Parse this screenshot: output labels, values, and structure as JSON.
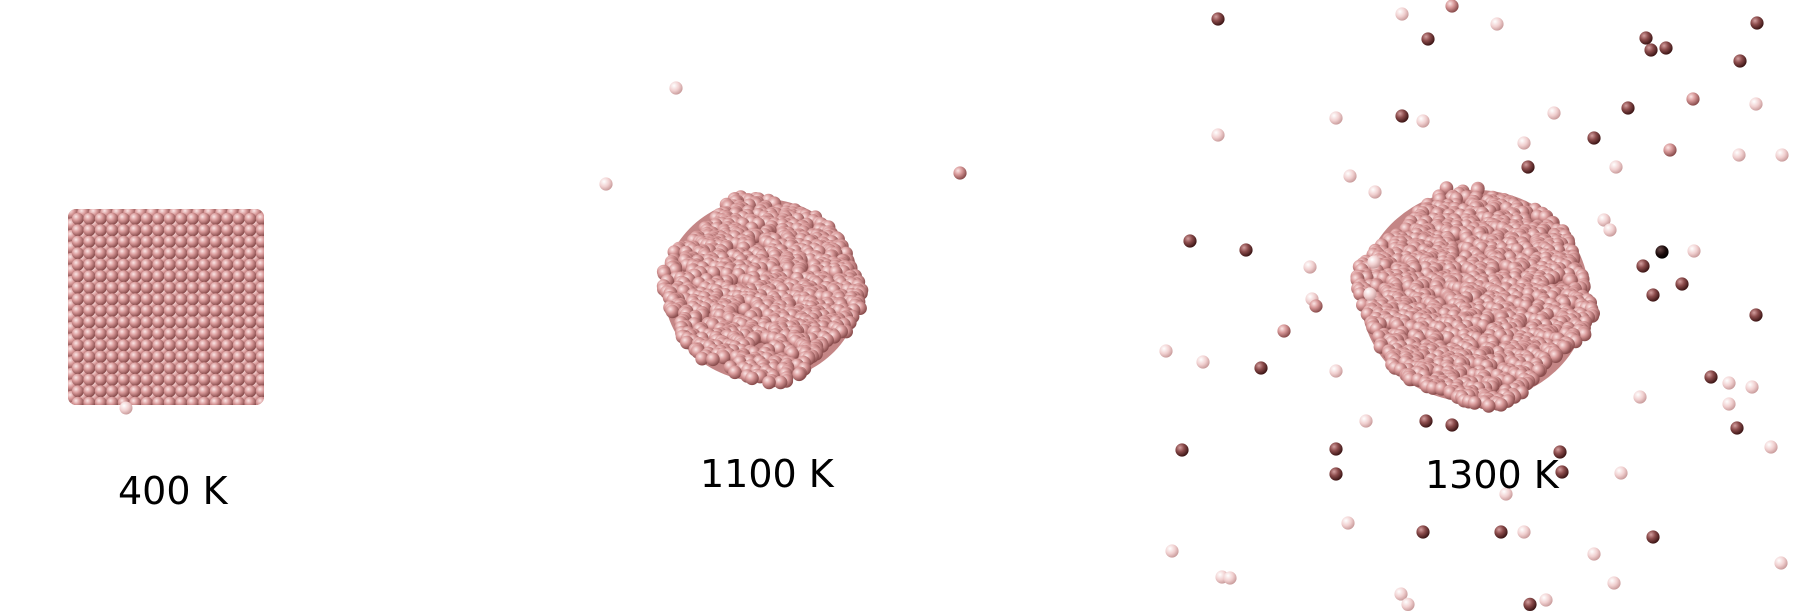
{
  "panels": [
    {
      "label": "400 K",
      "state": "cubic-crystal-nanoparticle"
    },
    {
      "label": "1100 K",
      "state": "spherical-nanoparticle"
    },
    {
      "label": "1300 K",
      "state": "nanoparticle-with-evaporated-atoms"
    }
  ],
  "colors": {
    "background": "#ffffff",
    "atom_base": "#c98b8b",
    "atom_highlight": "#f7dede",
    "atom_shadow": "#7a4343",
    "atom_dark": "#4a1e1e",
    "atom_black": "#0c0505"
  }
}
